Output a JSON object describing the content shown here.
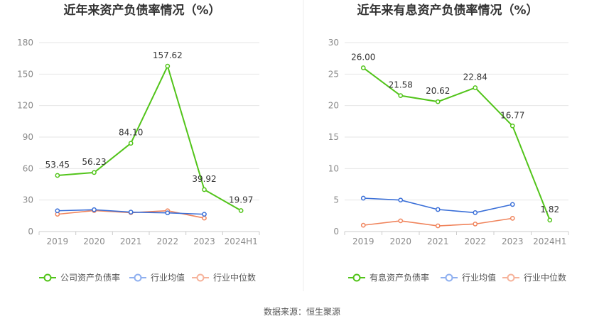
{
  "source": "数据来源：恒生聚源",
  "colors": {
    "main": "#52c41a",
    "avg": "#3a6fd8",
    "median": "#f0845c",
    "avg_legend": "#8fb0f0",
    "median_legend": "#f6b39b",
    "grid": "#e6e6e6",
    "axis": "#cccccc"
  },
  "chart_data": [
    {
      "type": "line",
      "title": "近年来资产负债率情况（%）",
      "categories": [
        "2019",
        "2020",
        "2021",
        "2022",
        "2023",
        "2024H1"
      ],
      "ylim": [
        0,
        180
      ],
      "yticks": [
        0,
        30,
        60,
        90,
        120,
        150,
        180
      ],
      "grid": true,
      "legend_position": "bottom",
      "series": [
        {
          "name": "公司资产负债率",
          "values": [
            53.45,
            56.23,
            84.1,
            157.62,
            39.92,
            19.97
          ],
          "labels": [
            "53.45",
            "56.23",
            "84.10",
            "157.62",
            "39.92",
            "19.97"
          ]
        },
        {
          "name": "行业均值",
          "values": [
            19.8,
            20.8,
            18.5,
            17.8,
            16.5,
            null
          ]
        },
        {
          "name": "行业中位数",
          "values": [
            16.5,
            20.0,
            18.0,
            19.8,
            12.8,
            null
          ]
        }
      ]
    },
    {
      "type": "line",
      "title": "近年来有息资产负债率情况（%）",
      "categories": [
        "2019",
        "2020",
        "2021",
        "2022",
        "2023",
        "2024H1"
      ],
      "ylim": [
        0,
        30
      ],
      "yticks": [
        0,
        5,
        10,
        15,
        20,
        25,
        30
      ],
      "grid": true,
      "legend_position": "bottom",
      "series": [
        {
          "name": "有息资产负债率",
          "values": [
            26.0,
            21.58,
            20.62,
            22.84,
            16.77,
            1.82
          ],
          "labels": [
            "26.00",
            "21.58",
            "20.62",
            "22.84",
            "16.77",
            "1.82"
          ]
        },
        {
          "name": "行业均值",
          "values": [
            5.3,
            5.0,
            3.5,
            3.0,
            4.3,
            null
          ]
        },
        {
          "name": "行业中位数",
          "values": [
            1.0,
            1.7,
            0.9,
            1.2,
            2.1,
            null
          ]
        }
      ]
    }
  ]
}
